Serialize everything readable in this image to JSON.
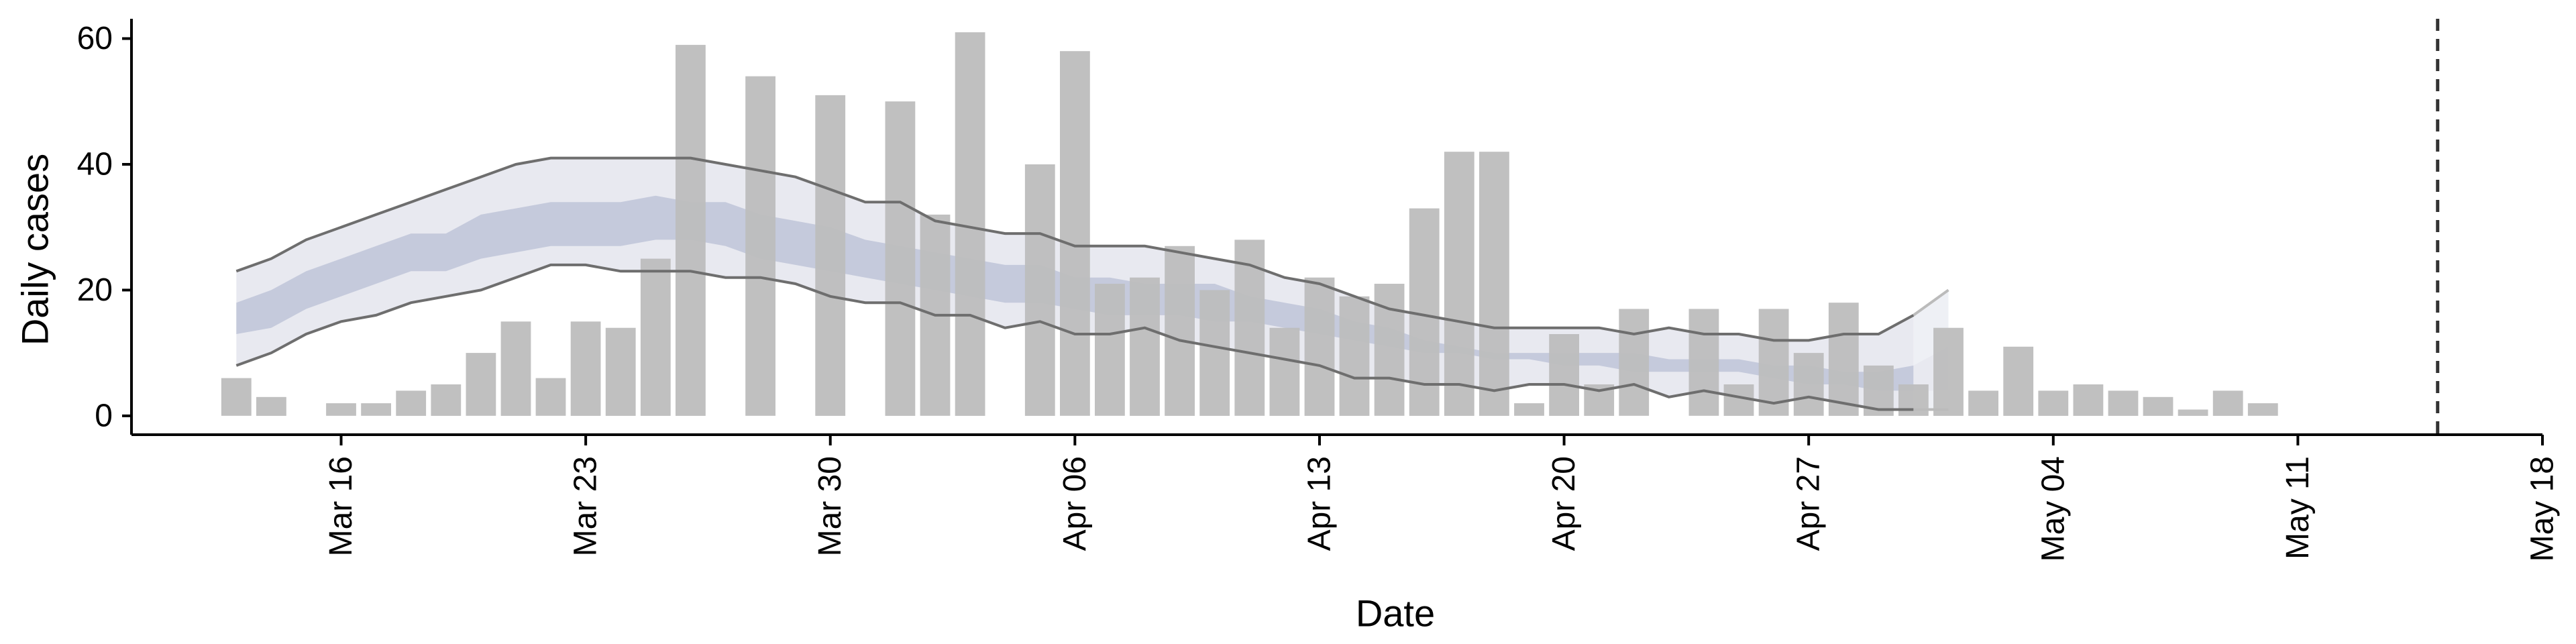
{
  "chart_data": {
    "type": "bar",
    "xlabel": "Date",
    "ylabel": "Daily cases",
    "x_start": "2020-03-13",
    "categories": [
      "Mar 13",
      "Mar 14",
      "Mar 15",
      "Mar 16",
      "Mar 17",
      "Mar 18",
      "Mar 19",
      "Mar 20",
      "Mar 21",
      "Mar 22",
      "Mar 23",
      "Mar 24",
      "Mar 25",
      "Mar 26",
      "Mar 27",
      "Mar 28",
      "Mar 29",
      "Mar 30",
      "Mar 31",
      "Apr 01",
      "Apr 02",
      "Apr 03",
      "Apr 04",
      "Apr 05",
      "Apr 06",
      "Apr 07",
      "Apr 08",
      "Apr 09",
      "Apr 10",
      "Apr 11",
      "Apr 12",
      "Apr 13",
      "Apr 14",
      "Apr 15",
      "Apr 16",
      "Apr 17",
      "Apr 18",
      "Apr 19",
      "Apr 20",
      "Apr 21",
      "Apr 22",
      "Apr 23",
      "Apr 24",
      "Apr 25",
      "Apr 26",
      "Apr 27",
      "Apr 28",
      "Apr 29",
      "Apr 30",
      "May 01",
      "May 02",
      "May 03",
      "May 04",
      "May 05",
      "May 06",
      "May 07",
      "May 08",
      "May 09",
      "May 10"
    ],
    "values": [
      6,
      3,
      0,
      2,
      2,
      4,
      5,
      10,
      15,
      6,
      15,
      14,
      25,
      59,
      0,
      54,
      0,
      51,
      0,
      50,
      32,
      61,
      0,
      40,
      58,
      21,
      22,
      27,
      20,
      28,
      14,
      22,
      19,
      21,
      33,
      42,
      42,
      2,
      13,
      5,
      17,
      0,
      17,
      5,
      17,
      10,
      18,
      8,
      5,
      14,
      4,
      11,
      4,
      5,
      4,
      3,
      1,
      4,
      2
    ],
    "series": [
      {
        "name": "",
        "x": [
          "Mar 13",
          "Mar 14",
          "Mar 15",
          "Mar 16",
          "Mar 17",
          "Mar 18",
          "Mar 19",
          "Mar 20",
          "Mar 21",
          "Mar 22",
          "Mar 23",
          "Mar 24",
          "Mar 25",
          "Mar 26",
          "Mar 27",
          "Mar 28",
          "Mar 29",
          "Mar 30",
          "Mar 31",
          "Apr 01",
          "Apr 02",
          "Apr 03",
          "Apr 04",
          "Apr 05",
          "Apr 06",
          "Apr 07",
          "Apr 08",
          "Apr 09",
          "Apr 10",
          "Apr 11",
          "Apr 12",
          "Apr 13",
          "Apr 14",
          "Apr 15",
          "Apr 16",
          "Apr 17",
          "Apr 18",
          "Apr 19",
          "Apr 20",
          "Apr 21",
          "Apr 22",
          "Apr 23",
          "Apr 24",
          "Apr 25",
          "Apr 26",
          "Apr 27",
          "Apr 28",
          "Apr 29",
          "Apr 30",
          "May 01"
        ],
        "upper_90": [
          23,
          25,
          28,
          30,
          32,
          34,
          36,
          38,
          40,
          41,
          41,
          41,
          41,
          41,
          40,
          39,
          38,
          36,
          34,
          34,
          31,
          30,
          29,
          29,
          27,
          27,
          27,
          26,
          25,
          24,
          22,
          21,
          19,
          17,
          16,
          15,
          14,
          14,
          14,
          14,
          13,
          14,
          13,
          13,
          12,
          12,
          13,
          13,
          16,
          20
        ],
        "lower_90": [
          8,
          10,
          13,
          15,
          16,
          18,
          19,
          20,
          22,
          24,
          24,
          23,
          23,
          23,
          22,
          22,
          21,
          19,
          18,
          18,
          16,
          16,
          14,
          15,
          13,
          13,
          14,
          12,
          11,
          10,
          9,
          8,
          6,
          6,
          5,
          5,
          4,
          5,
          5,
          4,
          5,
          3,
          4,
          3,
          2,
          3,
          2,
          1,
          1,
          1
        ],
        "upper_50": [
          18,
          20,
          23,
          25,
          27,
          29,
          29,
          32,
          33,
          34,
          34,
          34,
          35,
          34,
          34,
          32,
          31,
          30,
          28,
          27,
          26,
          25,
          24,
          24,
          22,
          22,
          21,
          21,
          21,
          19,
          18,
          17,
          15,
          14,
          12,
          11,
          10,
          10,
          10,
          10,
          10,
          9,
          9,
          9,
          8,
          8,
          7,
          7,
          8,
          11
        ],
        "lower_50": [
          13,
          14,
          17,
          19,
          21,
          23,
          23,
          25,
          26,
          27,
          27,
          27,
          28,
          28,
          27,
          25,
          24,
          23,
          22,
          21,
          20,
          19,
          18,
          18,
          17,
          16,
          16,
          16,
          15,
          15,
          14,
          13,
          12,
          11,
          10,
          10,
          9,
          9,
          8,
          8,
          7,
          7,
          7,
          7,
          6,
          5,
          5,
          4,
          4,
          4
        ]
      }
    ],
    "projection_start_x": "Apr 30",
    "reference_line_x": "May 15",
    "xticks": [
      "Mar 16",
      "Mar 23",
      "Mar 30",
      "Apr 06",
      "Apr 13",
      "Apr 20",
      "Apr 27",
      "May 04",
      "May 11",
      "May 18"
    ],
    "yticks": [
      0,
      20,
      40,
      60
    ],
    "ylim": [
      -3,
      64
    ],
    "xlim": [
      "Mar 10",
      "May 18"
    ],
    "grid": false,
    "colors": {
      "bars": "#bdbdbd",
      "band_90": "#e8e9f0",
      "band_50": "#c5cadc",
      "band_projection": "#eef0f5",
      "bound_lines": "#6e6e6e",
      "reference_line": "#333333"
    }
  }
}
